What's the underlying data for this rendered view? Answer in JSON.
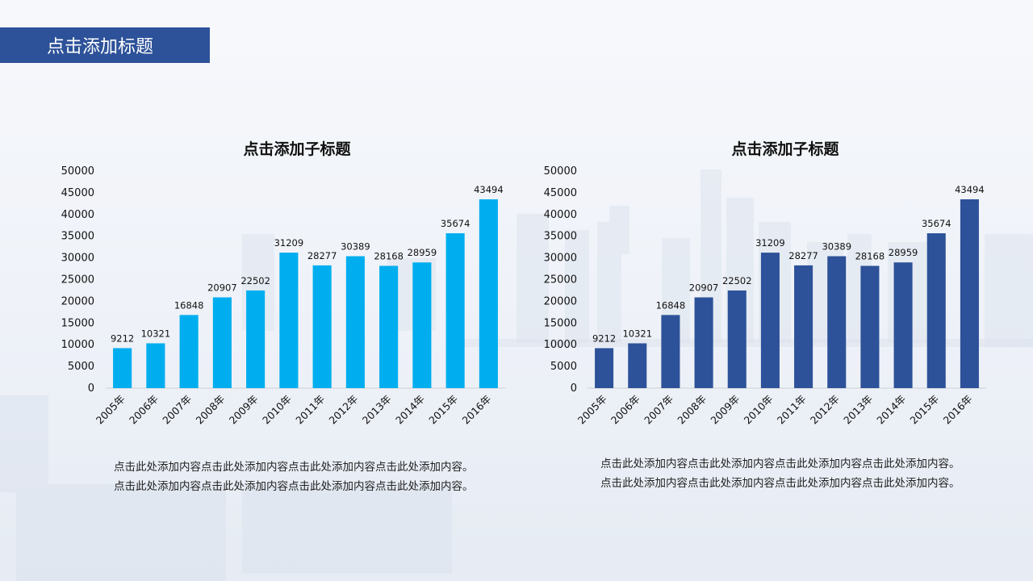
{
  "page_title": "点击添加标题",
  "colors": {
    "title_bar": "#2d5299",
    "chart1_bars": "#00aeef",
    "chart2_bars": "#2d5299"
  },
  "charts": [
    {
      "title": "点击添加子标题",
      "description": "点击此处添加内容点击此处添加内容点击此处添加内容点击此处添加内容。点击此处添加内容点击此处添加内容点击此处添加内容点击此处添加内容。"
    },
    {
      "title": "点击添加子标题",
      "description": "点击此处添加内容点击此处添加内容点击此处添加内容点击此处添加内容。点击此处添加内容点击此处添加内容点击此处添加内容点击此处添加内容。"
    }
  ],
  "chart_data": [
    {
      "type": "bar",
      "title": "点击添加子标题",
      "categories": [
        "2005年",
        "2006年",
        "2007年",
        "2008年",
        "2009年",
        "2010年",
        "2011年",
        "2012年",
        "2013年",
        "2014年",
        "2015年",
        "2016年"
      ],
      "values": [
        9212,
        10321,
        16848,
        20907,
        22502,
        31209,
        28277,
        30389,
        28168,
        28959,
        35674,
        43494
      ],
      "ylim": [
        0,
        50000
      ],
      "yticks": [
        0,
        5000,
        10000,
        15000,
        20000,
        25000,
        30000,
        35000,
        40000,
        45000,
        50000
      ],
      "data_labels": true,
      "grid": false,
      "bar_color": "#00aeef"
    },
    {
      "type": "bar",
      "title": "点击添加子标题",
      "categories": [
        "2005年",
        "2006年",
        "2007年",
        "2008年",
        "2009年",
        "2010年",
        "2011年",
        "2012年",
        "2013年",
        "2014年",
        "2015年",
        "2016年"
      ],
      "values": [
        9212,
        10321,
        16848,
        20907,
        22502,
        31209,
        28277,
        30389,
        28168,
        28959,
        35674,
        43494
      ],
      "ylim": [
        0,
        50000
      ],
      "yticks": [
        0,
        5000,
        10000,
        15000,
        20000,
        25000,
        30000,
        35000,
        40000,
        45000,
        50000
      ],
      "data_labels": true,
      "grid": false,
      "bar_color": "#2d5299"
    }
  ]
}
